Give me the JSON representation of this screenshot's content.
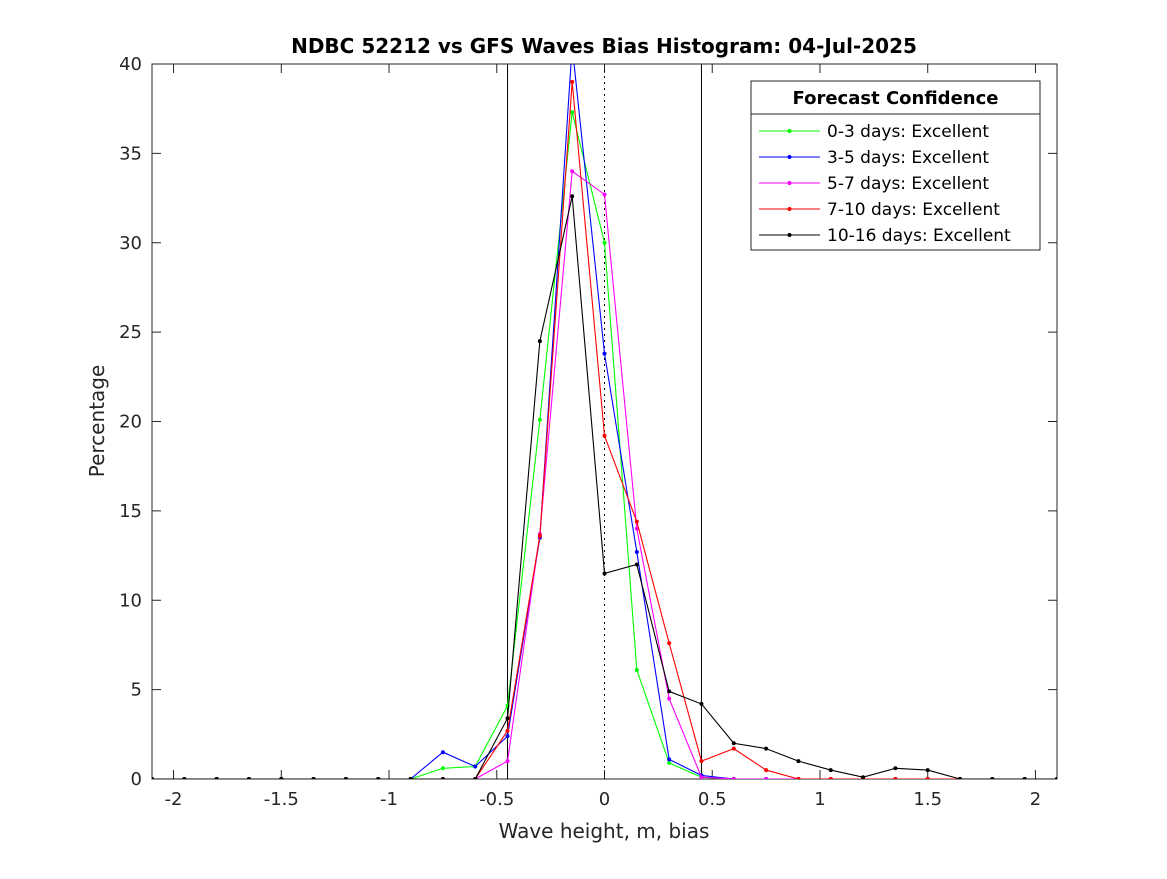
{
  "chart_data": {
    "type": "line",
    "title": "NDBC 52212 vs GFS Waves Bias Histogram: 04-Jul-2025",
    "xlabel": "Wave height, m, bias",
    "ylabel": "Percentage",
    "xlim": [
      -2.1,
      2.1
    ],
    "ylim": [
      0,
      40
    ],
    "xticks": [
      -2,
      -1.5,
      -1,
      -0.5,
      0,
      0.5,
      1,
      1.5,
      2
    ],
    "xtick_labels": [
      "-2",
      "-1.5",
      "-1",
      "-0.5",
      "0",
      "0.5",
      "1",
      "1.5",
      "2"
    ],
    "yticks": [
      0,
      5,
      10,
      15,
      20,
      25,
      30,
      35,
      40
    ],
    "ytick_labels": [
      "0",
      "5",
      "10",
      "15",
      "20",
      "25",
      "30",
      "35",
      "40"
    ],
    "grid": false,
    "vertical_lines": [
      {
        "x": -0.45,
        "style": "solid"
      },
      {
        "x": 0,
        "style": "dotted"
      },
      {
        "x": 0.45,
        "style": "solid"
      }
    ],
    "legend": {
      "title": "Forecast Confidence",
      "placement": "top-right"
    },
    "x": [
      -2.1,
      -1.95,
      -1.8,
      -1.65,
      -1.5,
      -1.35,
      -1.2,
      -1.05,
      -0.9,
      -0.75,
      -0.6,
      -0.45,
      -0.3,
      -0.15,
      0,
      0.15,
      0.3,
      0.45,
      0.6,
      0.75,
      0.9,
      1.05,
      1.2,
      1.35,
      1.5,
      1.65,
      1.8,
      1.95,
      2.1
    ],
    "series": [
      {
        "name": "0-3 days: Excellent",
        "color": "#00ff00",
        "values": [
          0,
          0,
          0,
          0,
          0,
          0,
          0,
          0,
          0,
          0.6,
          0.7,
          4.1,
          20.1,
          37.3,
          30.0,
          6.1,
          0.9,
          0.1,
          0,
          0,
          0,
          0,
          0,
          0,
          0,
          0,
          0,
          0,
          0
        ]
      },
      {
        "name": "3-5 days: Excellent",
        "color": "#0000ff",
        "values": [
          0,
          0,
          0,
          0,
          0,
          0,
          0,
          0,
          0,
          1.5,
          0.7,
          2.4,
          13.5,
          41.0,
          23.8,
          12.7,
          1.1,
          0.2,
          0,
          0,
          0,
          0,
          0,
          0,
          0,
          0,
          0,
          0,
          0
        ]
      },
      {
        "name": "5-7 days: Excellent",
        "color": "#ff00ff",
        "values": [
          0,
          0,
          0,
          0,
          0,
          0,
          0,
          0,
          0,
          0,
          0,
          1.0,
          13.7,
          34.0,
          32.7,
          14.0,
          4.5,
          0.1,
          0,
          0,
          0,
          0,
          0,
          0,
          0,
          0,
          0,
          0,
          0
        ]
      },
      {
        "name": "7-10 days: Excellent",
        "color": "#ff0000",
        "values": [
          0,
          0,
          0,
          0,
          0,
          0,
          0,
          0,
          0,
          0,
          0,
          2.7,
          13.6,
          39.0,
          19.2,
          14.4,
          7.6,
          1.0,
          1.7,
          0.5,
          0,
          0,
          0,
          0,
          0,
          0,
          0,
          0,
          0
        ]
      },
      {
        "name": "10-16 days: Excellent",
        "color": "#000000",
        "values": [
          0,
          0,
          0,
          0,
          0,
          0,
          0,
          0,
          0,
          0,
          0,
          3.4,
          24.5,
          32.6,
          11.5,
          12.0,
          4.9,
          4.2,
          2.0,
          1.7,
          1.0,
          0.5,
          0.1,
          0.6,
          0.5,
          0,
          0,
          0,
          0
        ]
      }
    ]
  }
}
